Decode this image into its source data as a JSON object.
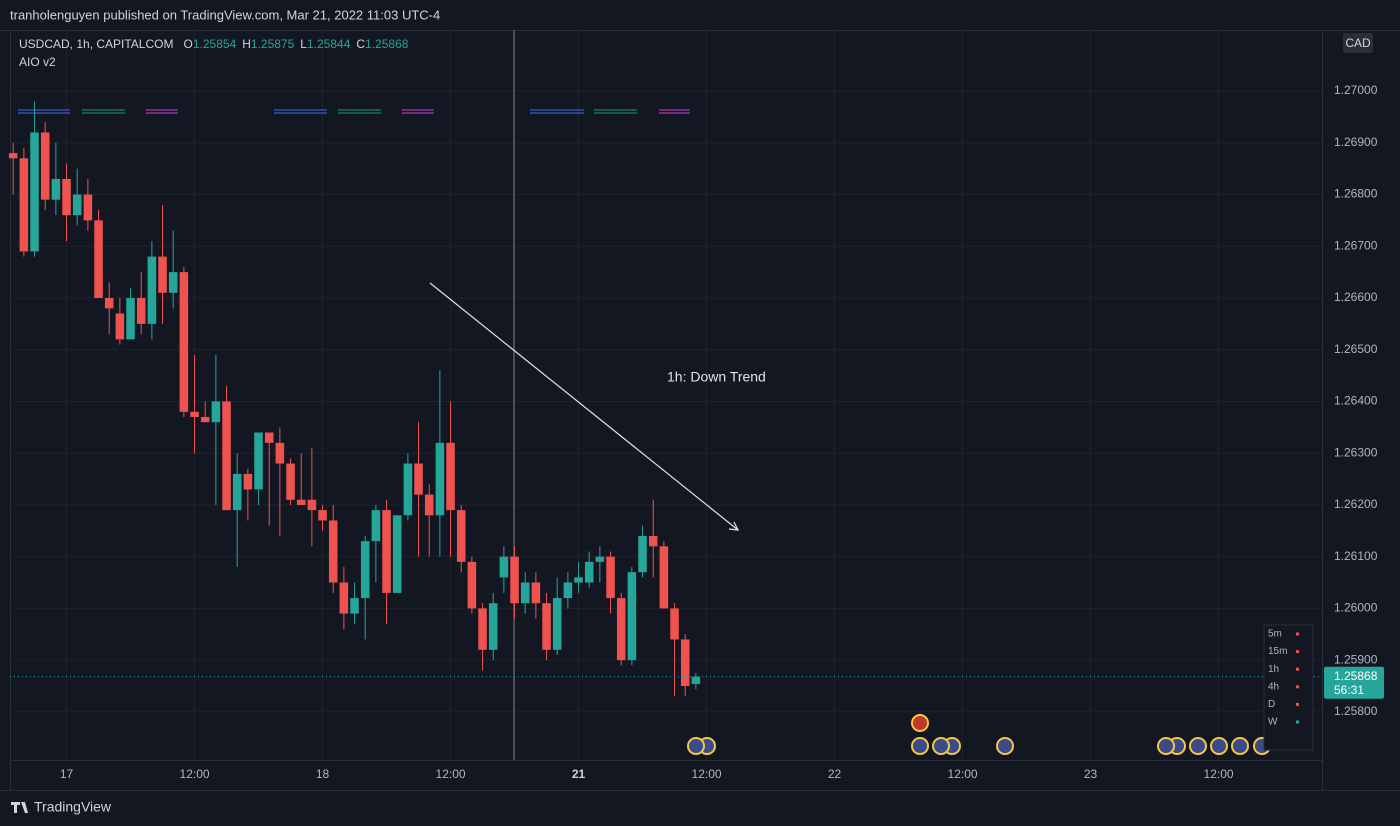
{
  "header": {
    "publisher": "tranholenguyen published on TradingView.com, Mar 21, 2022 11:03 UTC-4",
    "brand": "TradingView"
  },
  "chart_data": {
    "type": "candlestick",
    "title": "USDCAD, 1h, CAPITALCOM",
    "indicator": "AIO v2",
    "currency": "CAD",
    "ohlc_labels": [
      "O",
      "H",
      "L",
      "C"
    ],
    "up_color": "#26a69a",
    "down_color": "#ef5350",
    "grid": true,
    "annotation": "1h: Down Trend",
    "countdown": "56:31",
    "open": [
      1.2688,
      1.2687,
      1.2669,
      1.2692,
      1.2679,
      1.2683,
      1.2676,
      1.268,
      1.2675,
      1.266,
      1.2657,
      1.2652,
      1.266,
      1.2655,
      1.2668,
      1.2661,
      1.2665,
      1.2638,
      1.2637,
      1.2636,
      1.264,
      1.2619,
      1.2626,
      1.2623,
      1.2634,
      1.2632,
      1.2628,
      1.2621,
      1.2621,
      1.2619,
      1.2617,
      1.2605,
      1.2599,
      1.2602,
      1.2613,
      1.2619,
      1.2603,
      1.2618,
      1.2628,
      1.2622,
      1.2618,
      1.2632,
      1.2619,
      1.2609,
      1.26,
      1.2592,
      1.2606,
      1.261,
      1.2601,
      1.2605,
      1.2601,
      1.2592,
      1.2602,
      1.2605,
      1.2605,
      1.2609,
      1.261,
      1.2602,
      1.259,
      1.2607,
      1.2614,
      1.2612,
      1.26,
      1.2594,
      1.25854
    ],
    "high": [
      1.269,
      1.2689,
      1.2698,
      1.2694,
      1.269,
      1.2686,
      1.2685,
      1.2683,
      1.2677,
      1.2663,
      1.266,
      1.2662,
      1.2665,
      1.2671,
      1.2678,
      1.2673,
      1.2666,
      1.2649,
      1.264,
      1.2649,
      1.2643,
      1.263,
      1.2627,
      1.2634,
      1.2634,
      1.2635,
      1.2629,
      1.263,
      1.2631,
      1.262,
      1.262,
      1.2608,
      1.2605,
      1.2614,
      1.262,
      1.2621,
      1.2618,
      1.263,
      1.2636,
      1.2624,
      1.2646,
      1.264,
      1.262,
      1.261,
      1.2601,
      1.2603,
      1.2612,
      1.2612,
      1.2607,
      1.2607,
      1.2603,
      1.2606,
      1.2607,
      1.2609,
      1.2611,
      1.2612,
      1.2611,
      1.2603,
      1.2608,
      1.2616,
      1.2621,
      1.2613,
      1.2601,
      1.2595,
      1.25875
    ],
    "low": [
      1.268,
      1.2668,
      1.2668,
      1.2677,
      1.2676,
      1.2671,
      1.2674,
      1.2673,
      1.266,
      1.2653,
      1.2651,
      1.2652,
      1.2653,
      1.2652,
      1.2655,
      1.2658,
      1.2637,
      1.263,
      1.2636,
      1.262,
      1.2619,
      1.2608,
      1.2617,
      1.262,
      1.2616,
      1.2614,
      1.262,
      1.262,
      1.2612,
      1.2615,
      1.2603,
      1.2596,
      1.2597,
      1.2594,
      1.2605,
      1.2597,
      1.2603,
      1.2617,
      1.261,
      1.261,
      1.261,
      1.261,
      1.2607,
      1.2599,
      1.2588,
      1.259,
      1.2603,
      1.2598,
      1.2599,
      1.2598,
      1.259,
      1.2591,
      1.26,
      1.2603,
      1.2604,
      1.2605,
      1.2599,
      1.2589,
      1.2589,
      1.2606,
      1.2606,
      1.26,
      1.2583,
      1.2583,
      1.25844
    ],
    "close": [
      1.2687,
      1.2669,
      1.2692,
      1.2679,
      1.2683,
      1.2676,
      1.268,
      1.2675,
      1.266,
      1.2658,
      1.2652,
      1.266,
      1.2655,
      1.2668,
      1.2661,
      1.2665,
      1.2638,
      1.2637,
      1.2636,
      1.264,
      1.2619,
      1.2626,
      1.2623,
      1.2634,
      1.2632,
      1.2628,
      1.2621,
      1.262,
      1.2619,
      1.2617,
      1.2605,
      1.2599,
      1.2602,
      1.2613,
      1.2619,
      1.2603,
      1.2618,
      1.2628,
      1.2622,
      1.2618,
      1.2632,
      1.2619,
      1.2609,
      1.26,
      1.2592,
      1.2601,
      1.261,
      1.2601,
      1.2605,
      1.2601,
      1.2592,
      1.2602,
      1.2605,
      1.2606,
      1.2609,
      1.261,
      1.2602,
      1.259,
      1.2607,
      1.2614,
      1.2612,
      1.26,
      1.2594,
      1.2585,
      1.25868
    ],
    "xlim": [
      -0.3,
      122.7
    ],
    "xticks": [
      {
        "value": 5,
        "label": "17"
      },
      {
        "value": 17,
        "label": "12:00"
      },
      {
        "value": 29,
        "label": "18"
      },
      {
        "value": 41,
        "label": "12:00"
      },
      {
        "value": 53,
        "label": "21"
      },
      {
        "value": 65,
        "label": "12:00"
      },
      {
        "value": 77,
        "label": "22"
      },
      {
        "value": 89,
        "label": "12:00"
      },
      {
        "value": 101,
        "label": "23"
      },
      {
        "value": 113,
        "label": "12:00"
      }
    ],
    "ylim": [
      1.25707,
      1.27118
    ],
    "yticks": [
      {
        "value": 1.258,
        "label": "1.25800"
      },
      {
        "value": 1.259,
        "label": "1.25900"
      },
      {
        "value": 1.26,
        "label": "1.26000"
      },
      {
        "value": 1.261,
        "label": "1.26100"
      },
      {
        "value": 1.262,
        "label": "1.26200"
      },
      {
        "value": 1.263,
        "label": "1.26300"
      },
      {
        "value": 1.264,
        "label": "1.26400"
      },
      {
        "value": 1.265,
        "label": "1.26500"
      },
      {
        "value": 1.266,
        "label": "1.26600"
      },
      {
        "value": 1.267,
        "label": "1.26700"
      },
      {
        "value": 1.268,
        "label": "1.26800"
      },
      {
        "value": 1.269,
        "label": "1.26900"
      },
      {
        "value": 1.27,
        "label": "1.27000"
      }
    ],
    "timeframes": [
      {
        "label": "5m",
        "color": "#ef5350"
      },
      {
        "label": "15m",
        "color": "#ef5350"
      },
      {
        "label": "1h",
        "color": "#ef5350"
      },
      {
        "label": "4h",
        "color": "#ef5350"
      },
      {
        "label": "D",
        "color": "#ef5350"
      },
      {
        "label": "W",
        "color": "#26a69a"
      }
    ]
  }
}
